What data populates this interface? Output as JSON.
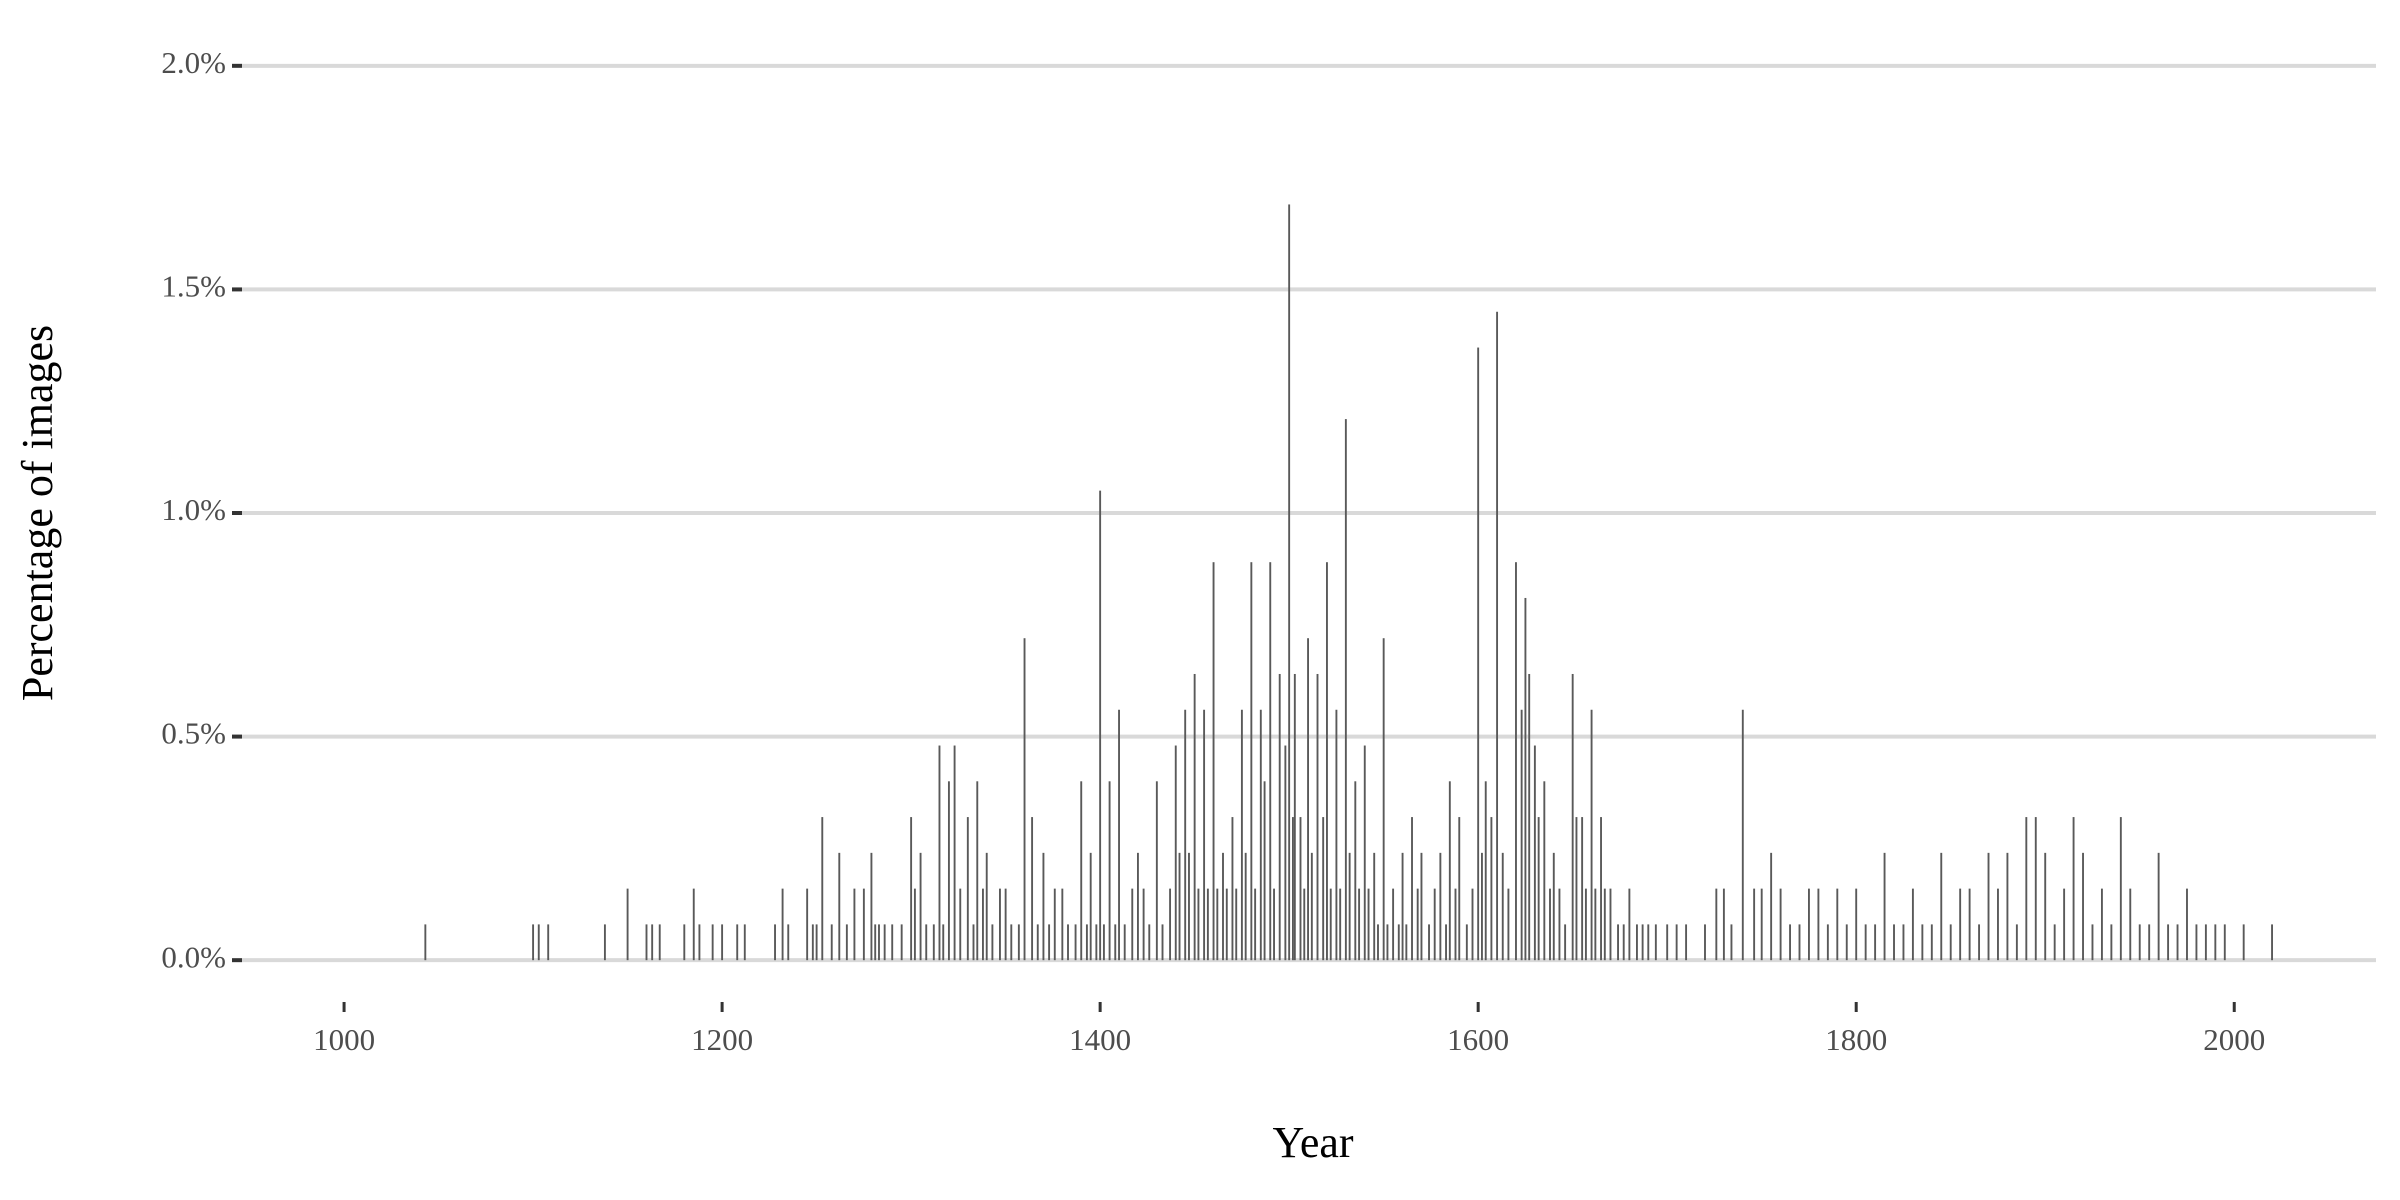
{
  "chart_data": {
    "type": "bar",
    "x_label": "Year",
    "y_label": "Percentage of images",
    "color": "#595959",
    "grid": true,
    "xlim": [
      946,
      2075
    ],
    "xticks": [
      1000,
      1200,
      1400,
      1600,
      1800,
      2000
    ],
    "ylim": [
      -0.06,
      2.06
    ],
    "yticks": [
      {
        "value": 0,
        "label": "0.0%"
      },
      {
        "value": 0.5,
        "label": "0.5%"
      },
      {
        "value": 1.0,
        "label": "1.0%"
      },
      {
        "value": 1.5,
        "label": "1.5%"
      },
      {
        "value": 2.0,
        "label": "2.0%"
      }
    ],
    "x": [
      1043,
      1100,
      1103,
      1108,
      1138,
      1150,
      1160,
      1163,
      1167,
      1180,
      1185,
      1188,
      1195,
      1200,
      1208,
      1212,
      1228,
      1232,
      1235,
      1245,
      1248,
      1250,
      1253,
      1258,
      1262,
      1266,
      1270,
      1275,
      1279,
      1281,
      1283,
      1286,
      1290,
      1295,
      1300,
      1302,
      1305,
      1308,
      1312,
      1315,
      1317,
      1320,
      1323,
      1326,
      1330,
      1333,
      1335,
      1338,
      1340,
      1343,
      1347,
      1350,
      1353,
      1357,
      1360,
      1364,
      1367,
      1370,
      1373,
      1376,
      1380,
      1383,
      1387,
      1390,
      1393,
      1395,
      1398,
      1400,
      1402,
      1405,
      1408,
      1410,
      1413,
      1417,
      1420,
      1423,
      1426,
      1430,
      1433,
      1437,
      1440,
      1442,
      1445,
      1447,
      1450,
      1452,
      1455,
      1457,
      1460,
      1462,
      1465,
      1467,
      1470,
      1472,
      1475,
      1477,
      1480,
      1482,
      1485,
      1487,
      1490,
      1492,
      1495,
      1498,
      1500,
      1502,
      1503,
      1506,
      1508,
      1510,
      1512,
      1515,
      1518,
      1520,
      1522,
      1525,
      1527,
      1530,
      1532,
      1535,
      1537,
      1540,
      1542,
      1545,
      1547,
      1550,
      1552,
      1555,
      1558,
      1560,
      1562,
      1565,
      1568,
      1570,
      1574,
      1577,
      1580,
      1583,
      1585,
      1588,
      1590,
      1594,
      1597,
      1600,
      1602,
      1604,
      1607,
      1610,
      1613,
      1616,
      1620,
      1623,
      1625,
      1627,
      1630,
      1632,
      1635,
      1638,
      1640,
      1643,
      1646,
      1650,
      1652,
      1655,
      1657,
      1660,
      1662,
      1665,
      1667,
      1670,
      1674,
      1677,
      1680,
      1684,
      1687,
      1690,
      1694,
      1700,
      1705,
      1710,
      1720,
      1726,
      1730,
      1734,
      1740,
      1746,
      1750,
      1755,
      1760,
      1765,
      1770,
      1775,
      1780,
      1785,
      1790,
      1795,
      1800,
      1805,
      1810,
      1815,
      1820,
      1825,
      1830,
      1835,
      1840,
      1845,
      1850,
      1855,
      1860,
      1865,
      1870,
      1875,
      1880,
      1885,
      1890,
      1895,
      1900,
      1905,
      1910,
      1915,
      1920,
      1925,
      1930,
      1935,
      1940,
      1945,
      1950,
      1955,
      1960,
      1965,
      1970,
      1975,
      1980,
      1985,
      1990,
      1995,
      2005,
      2020
    ],
    "values": [
      0.08,
      0.08,
      0.08,
      0.08,
      0.08,
      0.16,
      0.08,
      0.08,
      0.08,
      0.08,
      0.16,
      0.08,
      0.08,
      0.08,
      0.08,
      0.08,
      0.08,
      0.16,
      0.08,
      0.16,
      0.08,
      0.08,
      0.32,
      0.08,
      0.24,
      0.08,
      0.16,
      0.16,
      0.24,
      0.08,
      0.08,
      0.08,
      0.08,
      0.08,
      0.32,
      0.16,
      0.24,
      0.08,
      0.08,
      0.48,
      0.08,
      0.4,
      0.48,
      0.16,
      0.32,
      0.08,
      0.4,
      0.16,
      0.24,
      0.08,
      0.16,
      0.16,
      0.08,
      0.08,
      0.72,
      0.32,
      0.08,
      0.24,
      0.08,
      0.16,
      0.16,
      0.08,
      0.08,
      0.4,
      0.08,
      0.24,
      0.08,
      1.05,
      0.08,
      0.4,
      0.08,
      0.56,
      0.08,
      0.16,
      0.24,
      0.16,
      0.08,
      0.4,
      0.08,
      0.16,
      0.48,
      0.24,
      0.56,
      0.24,
      0.64,
      0.16,
      0.56,
      0.16,
      0.89,
      0.16,
      0.24,
      0.16,
      0.32,
      0.16,
      0.56,
      0.24,
      0.89,
      0.16,
      0.56,
      0.4,
      0.89,
      0.16,
      0.64,
      0.48,
      1.69,
      0.32,
      0.64,
      0.32,
      0.16,
      0.72,
      0.24,
      0.64,
      0.32,
      0.89,
      0.16,
      0.56,
      0.16,
      1.21,
      0.24,
      0.4,
      0.16,
      0.48,
      0.16,
      0.24,
      0.08,
      0.72,
      0.08,
      0.16,
      0.08,
      0.24,
      0.08,
      0.32,
      0.16,
      0.24,
      0.08,
      0.16,
      0.24,
      0.08,
      0.4,
      0.16,
      0.32,
      0.08,
      0.16,
      1.37,
      0.24,
      0.4,
      0.32,
      1.45,
      0.24,
      0.16,
      0.89,
      0.56,
      0.81,
      0.64,
      0.48,
      0.32,
      0.4,
      0.16,
      0.24,
      0.16,
      0.08,
      0.64,
      0.32,
      0.32,
      0.16,
      0.56,
      0.16,
      0.32,
      0.16,
      0.16,
      0.08,
      0.08,
      0.16,
      0.08,
      0.08,
      0.08,
      0.08,
      0.08,
      0.08,
      0.08,
      0.08,
      0.16,
      0.16,
      0.08,
      0.56,
      0.16,
      0.16,
      0.24,
      0.16,
      0.08,
      0.08,
      0.16,
      0.16,
      0.08,
      0.16,
      0.08,
      0.16,
      0.08,
      0.08,
      0.24,
      0.08,
      0.08,
      0.16,
      0.08,
      0.08,
      0.24,
      0.08,
      0.16,
      0.16,
      0.08,
      0.24,
      0.16,
      0.24,
      0.08,
      0.32,
      0.32,
      0.24,
      0.08,
      0.16,
      0.32,
      0.24,
      0.08,
      0.16,
      0.08,
      0.32,
      0.16,
      0.08,
      0.08,
      0.24,
      0.08,
      0.08,
      0.16,
      0.08,
      0.08,
      0.08,
      0.08,
      0.08,
      0.08
    ]
  }
}
